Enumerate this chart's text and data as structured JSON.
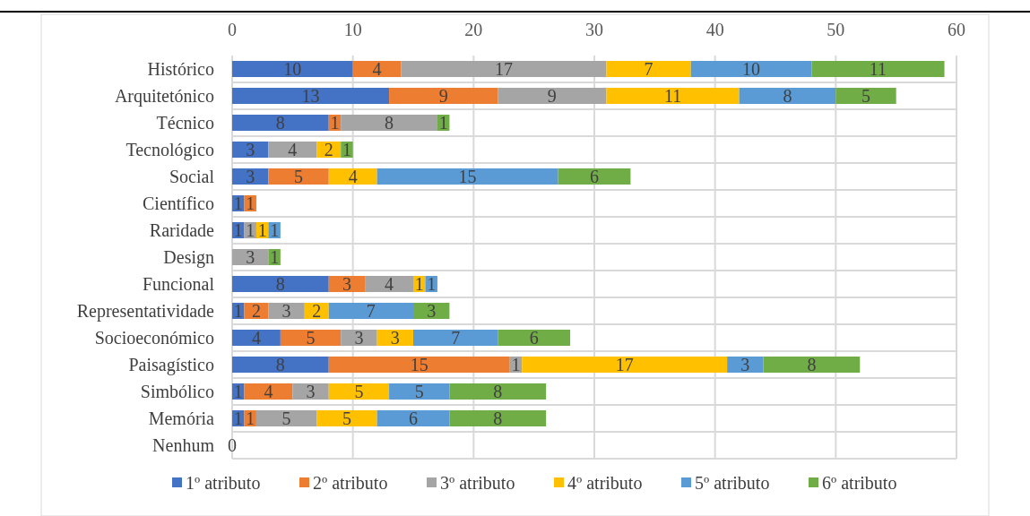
{
  "chart_data": {
    "type": "bar",
    "orientation": "horizontal",
    "stacked": true,
    "data_labels": true,
    "grid": "x",
    "legend": "bottom",
    "categories": [
      "Histórico",
      "Arquitetónico",
      "Técnico",
      "Tecnológico",
      "Social",
      "Científico",
      "Raridade",
      "Design",
      "Funcional",
      "Representatividade",
      "Socioeconómico",
      "Paisagístico",
      "Simbólico",
      "Memória",
      "Nenhum"
    ],
    "xlim": [
      0,
      60
    ],
    "xticks": [
      0,
      10,
      20,
      30,
      40,
      50,
      60
    ],
    "series": [
      {
        "name": "1º atributo",
        "color": "#4472c4",
        "values": [
          10,
          13,
          8,
          3,
          3,
          1,
          1,
          null,
          8,
          1,
          4,
          8,
          1,
          1,
          0
        ]
      },
      {
        "name": "2º atributo",
        "color": "#ed7d31",
        "values": [
          4,
          9,
          1,
          null,
          5,
          1,
          null,
          null,
          3,
          2,
          5,
          15,
          4,
          1,
          null
        ]
      },
      {
        "name": "3º atributo",
        "color": "#a5a5a5",
        "values": [
          17,
          9,
          8,
          4,
          null,
          null,
          1,
          3,
          4,
          3,
          3,
          1,
          3,
          5,
          null
        ]
      },
      {
        "name": "4º atributo",
        "color": "#ffc000",
        "values": [
          7,
          11,
          null,
          2,
          4,
          null,
          1,
          null,
          1,
          2,
          3,
          17,
          5,
          5,
          null
        ]
      },
      {
        "name": "5º atributo",
        "color": "#5b9bd5",
        "values": [
          10,
          8,
          null,
          null,
          15,
          null,
          1,
          null,
          1,
          7,
          7,
          3,
          5,
          6,
          null
        ]
      },
      {
        "name": "6º atributo",
        "color": "#70ad47",
        "values": [
          11,
          5,
          1,
          1,
          6,
          null,
          null,
          1,
          null,
          3,
          6,
          8,
          8,
          8,
          null
        ]
      }
    ]
  }
}
